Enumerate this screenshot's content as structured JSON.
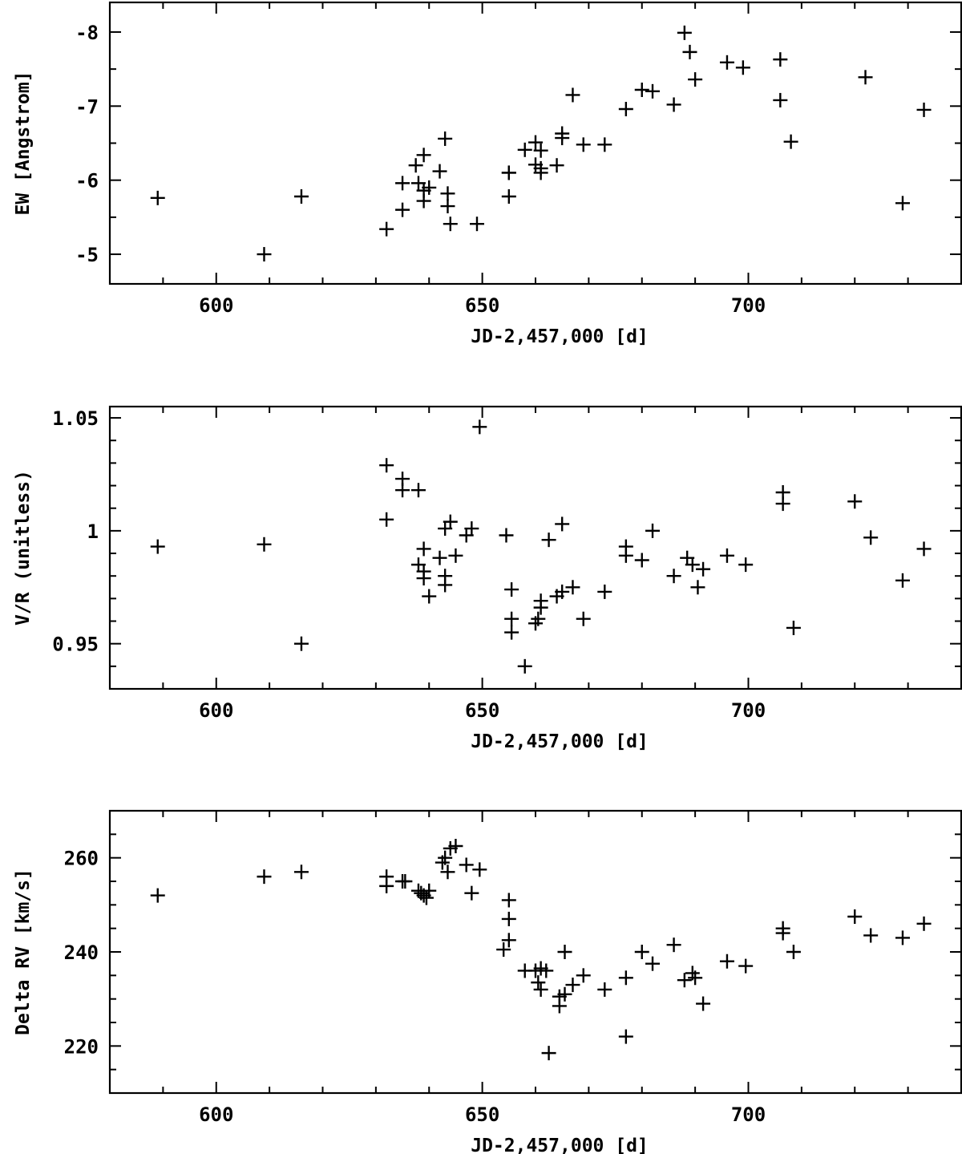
{
  "chart_data": [
    {
      "type": "scatter",
      "xlabel": "JD-2,457,000 [d]",
      "ylabel": "EW [Angstrom]",
      "xlim": [
        580,
        740
      ],
      "ylim": [
        -4.6,
        -8.4
      ],
      "y_inverted": true,
      "grid": false,
      "xticks": [
        600,
        650,
        700
      ],
      "yticks": [
        -5,
        -6,
        -7,
        -8
      ],
      "ytick_labels": [
        "-5",
        "-6",
        "-7",
        "-8"
      ],
      "series": [
        {
          "marker": "plus",
          "points": [
            [
              589,
              -5.76
            ],
            [
              609,
              -5.0
            ],
            [
              616,
              -5.78
            ],
            [
              632,
              -5.34
            ],
            [
              635,
              -5.96
            ],
            [
              635,
              -5.6
            ],
            [
              637.5,
              -6.2
            ],
            [
              638,
              -5.96
            ],
            [
              639,
              -6.34
            ],
            [
              639,
              -5.86
            ],
            [
              639,
              -5.72
            ],
            [
              640,
              -5.9
            ],
            [
              642,
              -6.12
            ],
            [
              643,
              -6.56
            ],
            [
              643.5,
              -5.82
            ],
            [
              643.5,
              -5.65
            ],
            [
              644,
              -5.41
            ],
            [
              649,
              -5.41
            ],
            [
              655,
              -6.1
            ],
            [
              655,
              -6.1
            ],
            [
              655,
              -5.78
            ],
            [
              658,
              -6.41
            ],
            [
              660,
              -6.51
            ],
            [
              660,
              -6.21
            ],
            [
              661,
              -6.16
            ],
            [
              661,
              -6.4
            ],
            [
              661,
              -6.1
            ],
            [
              664,
              -6.2
            ],
            [
              665,
              -6.63
            ],
            [
              665,
              -6.57
            ],
            [
              667,
              -7.15
            ],
            [
              669,
              -6.48
            ],
            [
              673,
              -6.48
            ],
            [
              677,
              -6.96
            ],
            [
              680,
              -7.22
            ],
            [
              682,
              -7.2
            ],
            [
              686,
              -7.02
            ],
            [
              688,
              -7.99
            ],
            [
              689,
              -7.73
            ],
            [
              690,
              -7.36
            ],
            [
              696,
              -7.59
            ],
            [
              699,
              -7.52
            ],
            [
              706,
              -7.63
            ],
            [
              706,
              -7.08
            ],
            [
              708,
              -6.52
            ],
            [
              722,
              -7.39
            ],
            [
              729,
              -5.69
            ],
            [
              733,
              -6.95
            ]
          ]
        }
      ]
    },
    {
      "type": "scatter",
      "xlabel": "JD-2,457,000 [d]",
      "ylabel": "V/R (unitless)",
      "xlim": [
        580,
        740
      ],
      "ylim": [
        0.93,
        1.055
      ],
      "grid": false,
      "xticks": [
        600,
        650,
        700
      ],
      "yticks": [
        0.95,
        1.0,
        1.05
      ],
      "ytick_labels": [
        "0.95",
        "1",
        "1.05"
      ],
      "series": [
        {
          "marker": "plus",
          "points": [
            [
              589,
              0.993
            ],
            [
              609,
              0.994
            ],
            [
              616,
              0.95
            ],
            [
              632,
              1.029
            ],
            [
              632,
              1.005
            ],
            [
              635,
              1.023
            ],
            [
              635,
              1.018
            ],
            [
              638,
              1.018
            ],
            [
              638,
              0.985
            ],
            [
              639,
              0.992
            ],
            [
              639,
              0.982
            ],
            [
              639,
              0.979
            ],
            [
              640,
              0.971
            ],
            [
              642,
              0.988
            ],
            [
              643,
              1.001
            ],
            [
              643,
              0.98
            ],
            [
              643,
              0.976
            ],
            [
              644,
              1.004
            ],
            [
              645,
              0.989
            ],
            [
              647,
              0.998
            ],
            [
              648,
              1.001
            ],
            [
              649.5,
              1.046
            ],
            [
              654.5,
              0.998
            ],
            [
              655.5,
              0.974
            ],
            [
              655.5,
              0.961
            ],
            [
              655.5,
              0.955
            ],
            [
              658,
              0.94
            ],
            [
              660,
              0.959
            ],
            [
              660.5,
              0.961
            ],
            [
              661,
              0.966
            ],
            [
              661,
              0.969
            ],
            [
              662.5,
              0.996
            ],
            [
              664,
              0.971
            ],
            [
              665,
              1.003
            ],
            [
              665,
              0.973
            ],
            [
              667,
              0.975
            ],
            [
              669,
              0.961
            ],
            [
              673,
              0.973
            ],
            [
              677,
              0.993
            ],
            [
              677,
              0.989
            ],
            [
              680,
              0.987
            ],
            [
              682,
              1.0
            ],
            [
              686,
              0.98
            ],
            [
              688.5,
              0.988
            ],
            [
              689.5,
              0.985
            ],
            [
              690.5,
              0.975
            ],
            [
              691.5,
              0.983
            ],
            [
              696,
              0.989
            ],
            [
              699.5,
              0.985
            ],
            [
              706.5,
              1.017
            ],
            [
              706.5,
              1.012
            ],
            [
              708.5,
              0.957
            ],
            [
              720,
              1.013
            ],
            [
              723,
              0.997
            ],
            [
              729,
              0.978
            ],
            [
              733,
              0.992
            ]
          ]
        }
      ]
    },
    {
      "type": "scatter",
      "xlabel": "JD-2,457,000 [d]",
      "ylabel": "Delta RV [km/s]",
      "xlim": [
        580,
        740
      ],
      "ylim": [
        210,
        270
      ],
      "grid": false,
      "xticks": [
        600,
        650,
        700
      ],
      "yticks": [
        220,
        240,
        260
      ],
      "ytick_labels": [
        "220",
        "240",
        "260"
      ],
      "series": [
        {
          "marker": "plus",
          "points": [
            [
              589,
              252
            ],
            [
              609,
              256
            ],
            [
              616,
              257
            ],
            [
              632,
              256
            ],
            [
              632,
              254
            ],
            [
              635,
              255
            ],
            [
              635.5,
              255
            ],
            [
              638,
              253
            ],
            [
              638.5,
              252.5
            ],
            [
              639,
              252
            ],
            [
              639.5,
              251.5
            ],
            [
              640,
              253
            ],
            [
              642.5,
              259
            ],
            [
              643,
              260
            ],
            [
              643.5,
              257
            ],
            [
              644,
              262
            ],
            [
              645,
              262.5
            ],
            [
              647,
              258.5
            ],
            [
              648,
              252.5
            ],
            [
              649.5,
              257.5
            ],
            [
              654,
              240.5
            ],
            [
              655,
              251
            ],
            [
              655,
              247
            ],
            [
              655,
              242.5
            ],
            [
              658,
              236
            ],
            [
              660,
              236
            ],
            [
              660.5,
              233.5
            ],
            [
              661,
              232
            ],
            [
              661,
              236.5
            ],
            [
              662,
              236
            ],
            [
              662.5,
              218.5
            ],
            [
              664.5,
              228.5
            ],
            [
              664.5,
              230.5
            ],
            [
              665.5,
              240
            ],
            [
              665.5,
              231
            ],
            [
              667,
              233
            ],
            [
              669,
              235
            ],
            [
              673,
              232
            ],
            [
              677,
              222
            ],
            [
              677,
              234.5
            ],
            [
              680,
              240
            ],
            [
              682,
              237.5
            ],
            [
              686,
              241.5
            ],
            [
              688,
              234
            ],
            [
              689.5,
              235.5
            ],
            [
              690,
              234.5
            ],
            [
              691.5,
              229
            ],
            [
              696,
              238
            ],
            [
              699.5,
              237
            ],
            [
              706.5,
              245
            ],
            [
              706.5,
              244
            ],
            [
              708.5,
              240
            ],
            [
              720,
              247.5
            ],
            [
              723,
              243.5
            ],
            [
              729,
              243
            ],
            [
              733,
              246
            ]
          ]
        }
      ]
    }
  ]
}
